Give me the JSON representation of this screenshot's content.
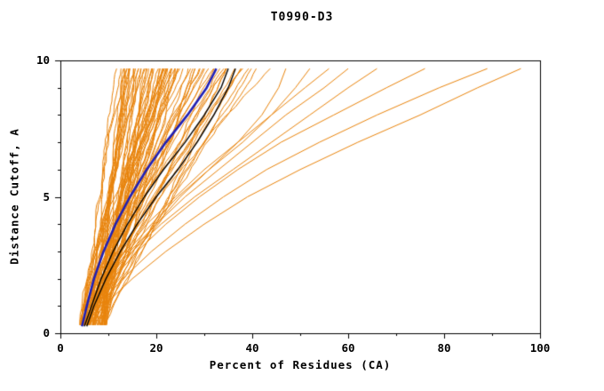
{
  "figure": {
    "title": "T0990-D3",
    "xlabel": "Percent of Residues (CA)",
    "ylabel": "Distance Cutoff, A"
  },
  "chart_data": {
    "type": "line",
    "title": "T0990-D3",
    "xlabel": "Percent of Residues (CA)",
    "ylabel": "Distance Cutoff, A",
    "xlim": [
      0,
      100
    ],
    "ylim": [
      0,
      10
    ],
    "x_ticks": [
      0,
      20,
      40,
      60,
      80,
      100
    ],
    "x_minor_step": 10,
    "y_ticks": [
      0,
      5,
      10
    ],
    "y_minor_step": 1,
    "grid": false,
    "legend": "none",
    "colors": {
      "bundle": "#E8830B",
      "highlight": "#1F1FB4",
      "secondary": "#000000",
      "axis": "#000000",
      "background": "#FFFFFF"
    },
    "series_explicit": [
      {
        "name": "outlier-1",
        "color": "#E8830B",
        "width": 1,
        "points": [
          [
            6,
            0.3
          ],
          [
            9,
            1
          ],
          [
            15,
            2
          ],
          [
            22,
            3
          ],
          [
            30,
            4
          ],
          [
            39,
            5
          ],
          [
            50,
            6
          ],
          [
            62,
            7
          ],
          [
            75,
            8
          ],
          [
            87,
            9
          ],
          [
            96,
            9.7
          ]
        ]
      },
      {
        "name": "outlier-2",
        "color": "#E8830B",
        "width": 1,
        "points": [
          [
            5.5,
            0.3
          ],
          [
            8,
            1
          ],
          [
            13,
            2
          ],
          [
            19,
            3
          ],
          [
            26,
            4
          ],
          [
            34,
            5
          ],
          [
            43,
            6
          ],
          [
            54,
            7
          ],
          [
            66,
            8
          ],
          [
            79,
            9
          ],
          [
            89,
            9.7
          ]
        ]
      },
      {
        "name": "outlier-3",
        "color": "#E8830B",
        "width": 1,
        "points": [
          [
            5,
            0.3
          ],
          [
            7.5,
            1
          ],
          [
            11,
            2
          ],
          [
            16,
            3
          ],
          [
            22,
            4
          ],
          [
            29,
            5
          ],
          [
            37,
            6
          ],
          [
            46,
            7
          ],
          [
            57,
            8
          ],
          [
            68,
            9
          ],
          [
            76,
            9.7
          ]
        ]
      },
      {
        "name": "outlier-4",
        "color": "#E8830B",
        "width": 1,
        "points": [
          [
            5,
            0.3
          ],
          [
            7,
            1
          ],
          [
            10.5,
            2
          ],
          [
            15,
            3
          ],
          [
            21,
            4
          ],
          [
            28,
            5
          ],
          [
            36,
            6
          ],
          [
            44,
            7
          ],
          [
            52,
            8
          ],
          [
            60,
            9
          ],
          [
            66,
            9.7
          ]
        ]
      },
      {
        "name": "outlier-5",
        "color": "#E8830B",
        "width": 1,
        "points": [
          [
            5,
            0.3
          ],
          [
            7,
            1
          ],
          [
            10,
            2
          ],
          [
            14.5,
            3
          ],
          [
            20,
            4
          ],
          [
            26,
            5
          ],
          [
            33,
            6
          ],
          [
            40,
            7
          ],
          [
            47,
            8
          ],
          [
            55,
            9
          ],
          [
            60,
            9.7
          ]
        ]
      },
      {
        "name": "outlier-6",
        "color": "#E8830B",
        "width": 1,
        "points": [
          [
            4.5,
            0.3
          ],
          [
            6.5,
            1
          ],
          [
            9.5,
            2
          ],
          [
            13.5,
            3
          ],
          [
            18,
            4
          ],
          [
            24,
            5
          ],
          [
            30,
            6
          ],
          [
            37,
            7
          ],
          [
            44,
            8
          ],
          [
            51,
            9
          ],
          [
            56,
            9.7
          ]
        ]
      },
      {
        "name": "outlier-7",
        "color": "#E8830B",
        "width": 1,
        "points": [
          [
            5,
            0.3
          ],
          [
            7,
            1
          ],
          [
            10,
            2
          ],
          [
            14,
            3
          ],
          [
            19,
            4
          ],
          [
            24.5,
            5
          ],
          [
            31,
            6
          ],
          [
            38,
            7
          ],
          [
            44,
            8
          ],
          [
            49,
            9
          ],
          [
            52,
            9.7
          ]
        ]
      },
      {
        "name": "outlier-8",
        "color": "#E8830B",
        "width": 1,
        "points": [
          [
            5.5,
            0.3
          ],
          [
            7.5,
            1
          ],
          [
            11,
            2
          ],
          [
            15,
            3
          ],
          [
            20,
            4
          ],
          [
            25,
            5
          ],
          [
            31,
            6
          ],
          [
            37,
            7
          ],
          [
            42,
            8
          ],
          [
            45.5,
            9
          ],
          [
            47,
            9.7
          ]
        ]
      },
      {
        "name": "black-line-1",
        "color": "#000000",
        "width": 1.4,
        "points": [
          [
            5,
            0.25
          ],
          [
            6.5,
            1
          ],
          [
            8.5,
            2
          ],
          [
            11,
            3
          ],
          [
            14,
            4
          ],
          [
            17.5,
            5
          ],
          [
            21.5,
            6
          ],
          [
            26,
            7
          ],
          [
            30,
            8
          ],
          [
            33.5,
            9
          ],
          [
            35,
            9.7
          ]
        ]
      },
      {
        "name": "black-line-2",
        "color": "#000000",
        "width": 1.4,
        "points": [
          [
            5.5,
            0.25
          ],
          [
            7,
            1
          ],
          [
            9.5,
            2
          ],
          [
            12.5,
            3
          ],
          [
            16,
            4
          ],
          [
            20,
            5
          ],
          [
            24.5,
            6
          ],
          [
            28.5,
            7
          ],
          [
            32,
            8
          ],
          [
            35,
            9
          ],
          [
            36.5,
            9.7
          ]
        ]
      },
      {
        "name": "highlight-line-blue",
        "color": "#1F1FB4",
        "width": 2.6,
        "points": [
          [
            4.5,
            0.25
          ],
          [
            5.5,
            1
          ],
          [
            7,
            2
          ],
          [
            9,
            3
          ],
          [
            11.5,
            4
          ],
          [
            14.5,
            5
          ],
          [
            18,
            6
          ],
          [
            22,
            7
          ],
          [
            26.5,
            8
          ],
          [
            30.5,
            9
          ],
          [
            32.5,
            9.7
          ]
        ]
      }
    ],
    "bundle": {
      "count": 78,
      "seed": 11,
      "color": "#E8830B",
      "start_x": [
        4,
        9.5
      ],
      "end_x": [
        13.5,
        44
      ],
      "end_skew": 1.6,
      "curve_exp": [
        0.9,
        1.35
      ],
      "wiggle": 0.55,
      "y_start": 0.3,
      "y_end": 9.7,
      "y_step": 0.2
    }
  }
}
